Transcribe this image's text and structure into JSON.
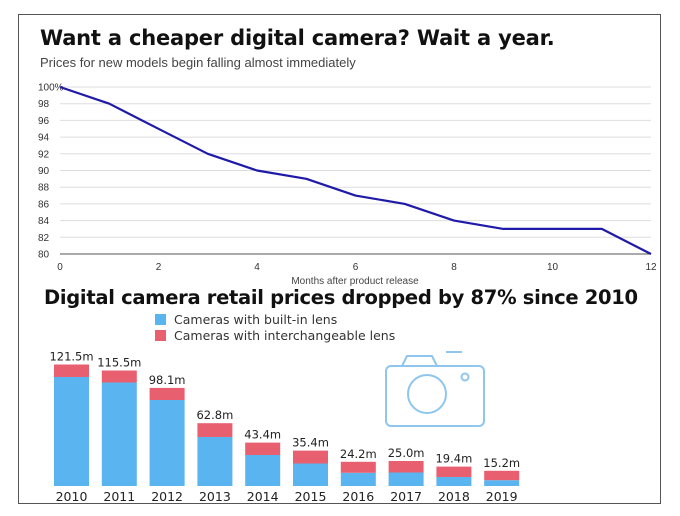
{
  "chart_data": [
    {
      "type": "line",
      "title": "Want a cheaper digital camera? Wait a year.",
      "subtitle": "Prices for new models begin falling almost immediately",
      "xlabel": "Months after product release",
      "ylabel": "",
      "x": [
        0,
        1,
        2,
        3,
        4,
        5,
        6,
        7,
        8,
        9,
        10,
        11,
        12
      ],
      "series": [
        {
          "values": [
            100,
            98,
            95,
            92,
            90,
            89,
            87,
            86,
            84,
            83,
            83,
            83,
            80
          ]
        }
      ],
      "xlim": [
        0,
        12
      ],
      "ylim": [
        80,
        100
      ],
      "xticks": [
        0,
        2,
        4,
        6,
        8,
        10,
        12
      ],
      "xtick_labels": [
        "0",
        "2",
        "4",
        "6",
        "8",
        "10",
        "12"
      ],
      "yticks": [
        80,
        82,
        84,
        86,
        88,
        90,
        92,
        94,
        96,
        98,
        100
      ],
      "ytick_labels": [
        "80",
        "82",
        "84",
        "86",
        "88",
        "90",
        "92",
        "94",
        "96",
        "98",
        "100%"
      ],
      "grid": true,
      "line_color": "#1f1aa8"
    },
    {
      "type": "bar",
      "stacked": true,
      "title": "Digital camera retail prices dropped by 87% since 2010",
      "categories": [
        "2010",
        "2011",
        "2012",
        "2013",
        "2014",
        "2015",
        "2016",
        "2017",
        "2018",
        "2019"
      ],
      "series": [
        {
          "name": "Cameras with built-in lens",
          "color": "#5ab4ef",
          "values": [
            109.0,
            103.5,
            86.0,
            49.0,
            31.0,
            22.5,
            13.2,
            13.5,
            9.0,
            5.8
          ]
        },
        {
          "name": "Cameras with interchangeable lens",
          "color": "#e85f70",
          "values": [
            12.5,
            12.0,
            12.1,
            13.8,
            12.4,
            12.9,
            11.0,
            11.5,
            10.4,
            9.4
          ]
        }
      ],
      "total_labels": [
        "121.5m",
        "115.5m",
        "98.1m",
        "62.8m",
        "43.4m",
        "35.4m",
        "24.2m",
        "25.0m",
        "19.4m",
        "15.2m"
      ],
      "legend_position": "top-center",
      "icon": "camera-icon",
      "icon_color": "#8fc6ee"
    }
  ]
}
